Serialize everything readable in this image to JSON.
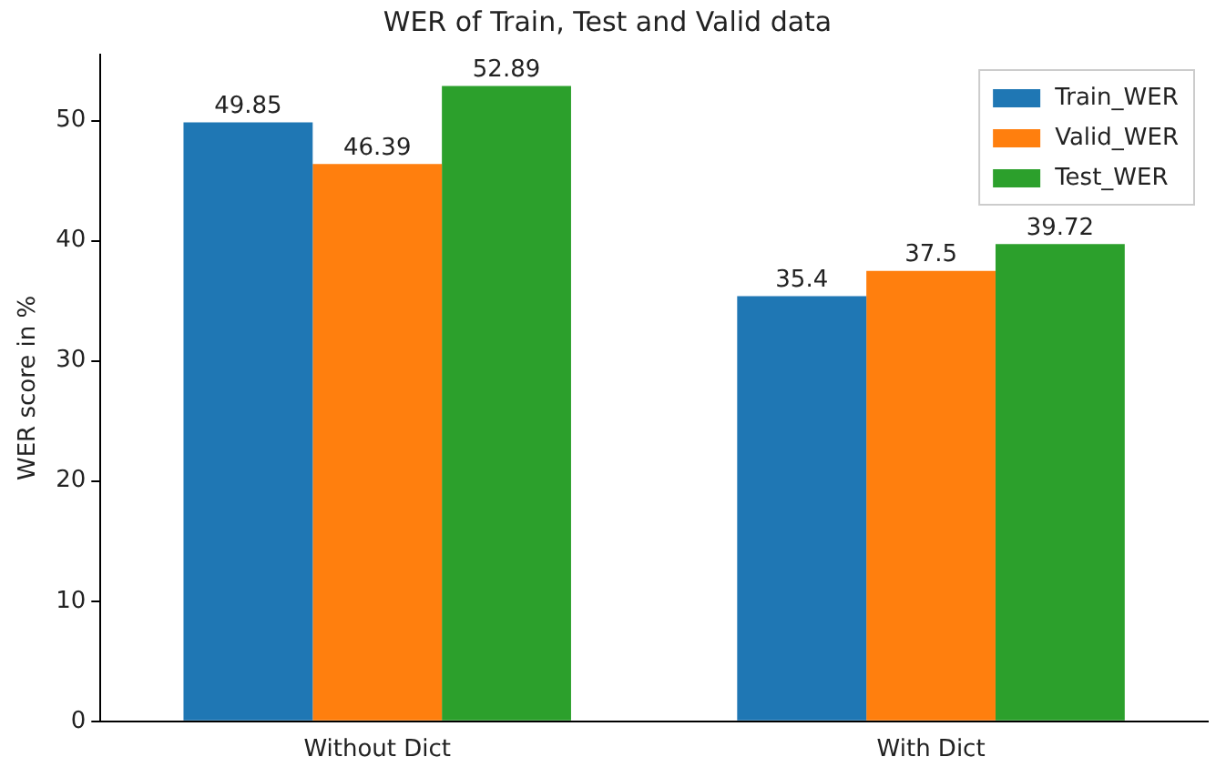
{
  "chart_data": {
    "type": "bar",
    "title": "WER of Train, Test and Valid data",
    "ylabel": "WER score in %",
    "categories": [
      "Without Dict",
      "With Dict"
    ],
    "series": [
      {
        "name": "Train_WER",
        "color": "#1f77b4",
        "values": [
          49.85,
          35.4
        ]
      },
      {
        "name": "Valid_WER",
        "color": "#ff7f0e",
        "values": [
          46.39,
          37.5
        ]
      },
      {
        "name": "Test_WER",
        "color": "#2ca02c",
        "values": [
          52.89,
          39.72
        ]
      }
    ],
    "ylim": [
      0,
      55.5
    ],
    "yticks": [
      0,
      10,
      20,
      30,
      40,
      50
    ],
    "grid": false,
    "legend": "top right",
    "data_labels": true
  }
}
